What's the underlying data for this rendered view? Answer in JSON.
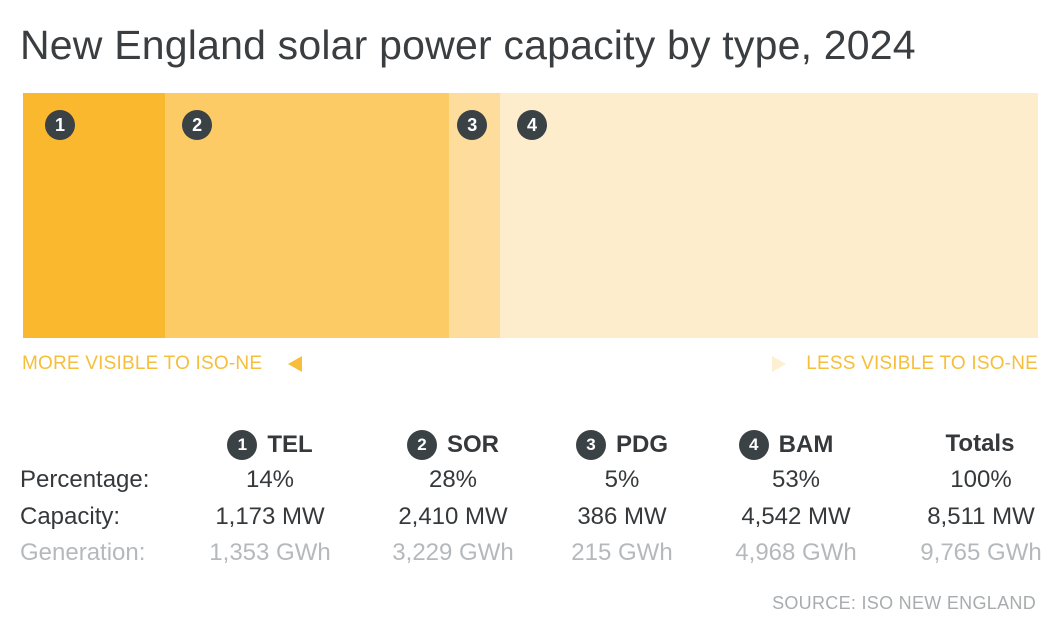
{
  "title": "New England solar power capacity by type, 2024",
  "visibility": {
    "left_label": "MORE VISIBLE TO ISO-NE",
    "right_label": "LESS VISIBLE TO ISO-NE"
  },
  "row_labels": {
    "percentage": "Percentage:",
    "capacity": "Capacity:",
    "generation": "Generation:"
  },
  "chart_data": {
    "type": "bar",
    "orientation": "stacked-horizontal",
    "title": "New England solar power capacity by type, 2024",
    "categories": [
      "TEL",
      "SOR",
      "PDG",
      "BAM"
    ],
    "badges": [
      "1",
      "2",
      "3",
      "4"
    ],
    "percentages": [
      14,
      28,
      5,
      53
    ],
    "percentage_labels": [
      "14%",
      "28%",
      "5%",
      "53%"
    ],
    "capacity_labels": [
      "1,173 MW",
      "2,410 MW",
      "386 MW",
      "4,542 MW"
    ],
    "generation_labels": [
      "1,353 GWh",
      "3,229 GWh",
      "215 GWh",
      "4,968 GWh"
    ],
    "capacity_mw": [
      1173,
      2410,
      386,
      4542
    ],
    "generation_gwh": [
      1353,
      3229,
      215,
      4968
    ],
    "colors": [
      "#fab82f",
      "#fccb66",
      "#fddc9c",
      "#fdedcc"
    ],
    "totals": {
      "label": "Totals",
      "percentage": "100%",
      "capacity": "8,511 MW",
      "generation": "9,765 GWh"
    }
  },
  "source": "SOURCE: ISO NEW ENGLAND"
}
